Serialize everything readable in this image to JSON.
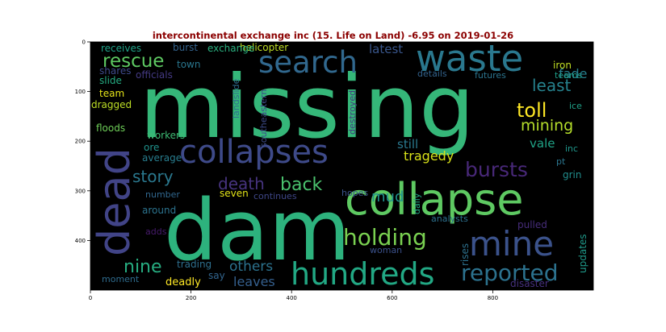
{
  "title": "intercontinental exchange inc (15. Life on Land) -6.95 on 2019-01-26",
  "axes": {
    "x_ticks": [
      "0",
      "200",
      "400",
      "600",
      "800"
    ],
    "y_ticks": [
      "0",
      "100",
      "200",
      "300",
      "400"
    ]
  },
  "words": [
    {
      "text": "missing",
      "color": "#35b779"
    },
    {
      "text": "dam",
      "color": "#2db27d"
    },
    {
      "text": "collapse",
      "color": "#5ec962"
    },
    {
      "text": "dead",
      "color": "#414487"
    },
    {
      "text": "collapses",
      "color": "#3e4a89"
    },
    {
      "text": "waste",
      "color": "#2a788e"
    },
    {
      "text": "search",
      "color": "#31688e"
    },
    {
      "text": "mine",
      "color": "#3b528b"
    },
    {
      "text": "hundreds",
      "color": "#22a884"
    },
    {
      "text": "reported",
      "color": "#2c728e"
    },
    {
      "text": "holding",
      "color": "#7ad151"
    },
    {
      "text": "rescue",
      "color": "#5ec962"
    },
    {
      "text": "bursts",
      "color": "#482878"
    },
    {
      "text": "toll",
      "color": "#fde725"
    },
    {
      "text": "mining",
      "color": "#b5de2b"
    },
    {
      "text": "least",
      "color": "#26828e"
    },
    {
      "text": "death",
      "color": "#46337e"
    },
    {
      "text": "back",
      "color": "#4ac16d"
    },
    {
      "text": "story",
      "color": "#2a788e"
    },
    {
      "text": "nine",
      "color": "#27ad81"
    },
    {
      "text": "others",
      "color": "#2c728e"
    },
    {
      "text": "mud",
      "color": "#21918c"
    },
    {
      "text": "tragedy",
      "color": "#d8e219"
    },
    {
      "text": "still",
      "color": "#2a788e"
    },
    {
      "text": "latest",
      "color": "#39568c"
    },
    {
      "text": "fade",
      "color": "#277f8e"
    },
    {
      "text": "vale",
      "color": "#20a386"
    },
    {
      "text": "leaves",
      "color": "#355f8d"
    },
    {
      "text": "deadly",
      "color": "#fde725"
    },
    {
      "text": "helicopter",
      "color": "#c0df25"
    },
    {
      "text": "exchange",
      "color": "#2ab07f"
    },
    {
      "text": "burst",
      "color": "#33638d"
    },
    {
      "text": "receives",
      "color": "#1fa187"
    },
    {
      "text": "town",
      "color": "#2a768e"
    },
    {
      "text": "officials",
      "color": "#443a83"
    },
    {
      "text": "shares",
      "color": "#3e4989"
    },
    {
      "text": "slide",
      "color": "#25ac82"
    },
    {
      "text": "team",
      "color": "#e5e419"
    },
    {
      "text": "dragged",
      "color": "#bddf26"
    },
    {
      "text": "floods",
      "color": "#6ece58"
    },
    {
      "text": "workers",
      "color": "#3dbc74"
    },
    {
      "text": "ore",
      "color": "#20928c"
    },
    {
      "text": "average",
      "color": "#287d8e"
    },
    {
      "text": "number",
      "color": "#31678e"
    },
    {
      "text": "around",
      "color": "#2c738e"
    },
    {
      "text": "adds",
      "color": "#481b6d"
    },
    {
      "text": "moment",
      "color": "#2f6c8e"
    },
    {
      "text": "trading",
      "color": "#2e6f8e"
    },
    {
      "text": "say",
      "color": "#32658e"
    },
    {
      "text": "seven",
      "color": "#e2e418"
    },
    {
      "text": "continues",
      "color": "#3f4788"
    },
    {
      "text": "hopes",
      "color": "#3a538b"
    },
    {
      "text": "woman",
      "color": "#3b518b"
    },
    {
      "text": "daily",
      "color": "#22a785"
    },
    {
      "text": "rises",
      "color": "#2d718e"
    },
    {
      "text": "analysts",
      "color": "#2d718e"
    },
    {
      "text": "pulled",
      "color": "#472d7b"
    },
    {
      "text": "disaster",
      "color": "#46307e"
    },
    {
      "text": "updates",
      "color": "#1f9a8a"
    },
    {
      "text": "details",
      "color": "#33638d"
    },
    {
      "text": "futures",
      "color": "#2b748e"
    },
    {
      "text": "teams",
      "color": "#1f9e89"
    },
    {
      "text": "iron",
      "color": "#c2df23"
    },
    {
      "text": "ice",
      "color": "#1fa188"
    },
    {
      "text": "inc",
      "color": "#1f968b"
    },
    {
      "text": "pt",
      "color": "#2b758e"
    },
    {
      "text": "grin",
      "color": "#218e8d"
    },
    {
      "text": "landslide",
      "color": "#2e6e8e"
    },
    {
      "text": "southeastern",
      "color": "#3e4c8a"
    },
    {
      "text": "destroyed",
      "color": "#44397f"
    }
  ]
}
